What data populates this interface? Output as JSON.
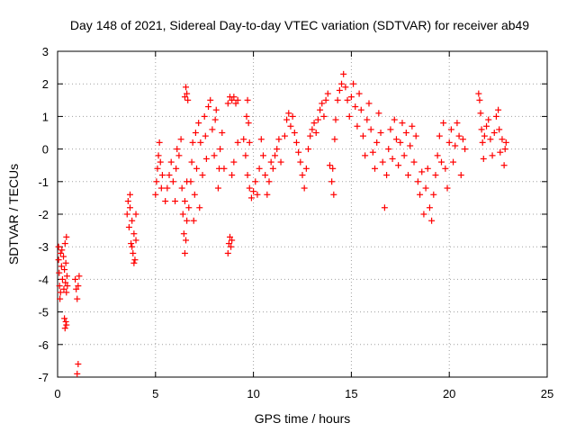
{
  "chart_data": {
    "type": "scatter",
    "title": "Day 148 of 2021, Sidereal Day-to-day VTEC variation (SDTVAR) for receiver ab49",
    "xlabel": "GPS time / hours",
    "ylabel": "SDTVAR / TECUs",
    "xlim": [
      0,
      25
    ],
    "ylim": [
      -7,
      3
    ],
    "xticks": [
      0,
      5,
      10,
      15,
      20,
      25
    ],
    "yticks": [
      -7,
      -6,
      -5,
      -4,
      -3,
      -2,
      -1,
      0,
      1,
      2,
      3
    ],
    "xtick_labels": [
      "0",
      "5",
      "10",
      "15",
      "20",
      "25"
    ],
    "ytick_labels": [
      "-7",
      "-6",
      "-5",
      "-4",
      "-3",
      "-2",
      "-1",
      "0",
      "1",
      "2",
      "3"
    ],
    "grid": true,
    "marker": "+",
    "color": "#ff0000",
    "series": [
      {
        "name": "SDTVAR",
        "points": [
          [
            0.05,
            -3.0
          ],
          [
            0.05,
            -3.4
          ],
          [
            0.08,
            -3.8
          ],
          [
            0.1,
            -4.2
          ],
          [
            0.12,
            -4.6
          ],
          [
            0.15,
            -4.4
          ],
          [
            0.15,
            -3.2
          ],
          [
            0.2,
            -3.6
          ],
          [
            0.22,
            -3.1
          ],
          [
            0.25,
            -4.0
          ],
          [
            0.3,
            -3.3
          ],
          [
            0.32,
            -4.3
          ],
          [
            0.35,
            -3.7
          ],
          [
            0.38,
            -2.9
          ],
          [
            0.4,
            -4.1
          ],
          [
            0.42,
            -3.5
          ],
          [
            0.45,
            -4.4
          ],
          [
            0.45,
            -2.7
          ],
          [
            0.48,
            -3.9
          ],
          [
            0.5,
            -4.2
          ],
          [
            0.35,
            -5.2
          ],
          [
            0.38,
            -5.5
          ],
          [
            0.42,
            -5.3
          ],
          [
            0.45,
            -5.4
          ],
          [
            0.9,
            -4.0
          ],
          [
            0.95,
            -4.3
          ],
          [
            1.0,
            -4.6
          ],
          [
            1.05,
            -4.2
          ],
          [
            1.1,
            -3.9
          ],
          [
            1.05,
            -6.6
          ],
          [
            1.0,
            -6.9
          ],
          [
            3.55,
            -2.0
          ],
          [
            3.6,
            -1.6
          ],
          [
            3.65,
            -2.4
          ],
          [
            3.7,
            -1.8
          ],
          [
            3.75,
            -2.9
          ],
          [
            3.8,
            -2.2
          ],
          [
            3.85,
            -3.2
          ],
          [
            3.9,
            -2.6
          ],
          [
            3.95,
            -3.4
          ],
          [
            4.0,
            -2.0
          ],
          [
            3.7,
            -1.4
          ],
          [
            3.8,
            -3.0
          ],
          [
            3.9,
            -3.5
          ],
          [
            4.0,
            -2.8
          ],
          [
            5.0,
            -1.4
          ],
          [
            5.05,
            -1.0
          ],
          [
            5.1,
            -0.6
          ],
          [
            5.15,
            -0.2
          ],
          [
            5.2,
            0.2
          ],
          [
            5.25,
            -0.4
          ],
          [
            5.3,
            -1.2
          ],
          [
            5.35,
            -0.8
          ],
          [
            5.5,
            -1.6
          ],
          [
            5.6,
            -1.2
          ],
          [
            5.7,
            -0.8
          ],
          [
            5.8,
            -0.4
          ],
          [
            5.9,
            -1.0
          ],
          [
            6.0,
            -1.6
          ],
          [
            6.05,
            -0.6
          ],
          [
            6.1,
            0.0
          ],
          [
            6.2,
            -0.2
          ],
          [
            6.3,
            0.3
          ],
          [
            6.35,
            -1.2
          ],
          [
            6.4,
            -2.0
          ],
          [
            6.45,
            -2.6
          ],
          [
            6.5,
            -3.2
          ],
          [
            6.55,
            -2.8
          ],
          [
            6.6,
            -2.2
          ],
          [
            6.5,
            -1.6
          ],
          [
            6.6,
            -1.0
          ],
          [
            6.5,
            1.6
          ],
          [
            6.55,
            1.9
          ],
          [
            6.6,
            1.7
          ],
          [
            6.65,
            1.5
          ],
          [
            6.7,
            -1.8
          ],
          [
            6.8,
            -1.0
          ],
          [
            6.85,
            -0.4
          ],
          [
            6.9,
            0.2
          ],
          [
            6.95,
            -2.2
          ],
          [
            7.0,
            -1.4
          ],
          [
            7.05,
            0.5
          ],
          [
            7.1,
            -0.6
          ],
          [
            7.2,
            0.8
          ],
          [
            7.25,
            -1.8
          ],
          [
            7.3,
            0.2
          ],
          [
            7.4,
            -0.8
          ],
          [
            7.5,
            1.0
          ],
          [
            7.55,
            0.4
          ],
          [
            7.6,
            -0.3
          ],
          [
            7.7,
            1.3
          ],
          [
            7.8,
            1.5
          ],
          [
            7.9,
            0.6
          ],
          [
            8.0,
            -0.2
          ],
          [
            8.05,
            0.9
          ],
          [
            8.1,
            1.2
          ],
          [
            8.2,
            -1.2
          ],
          [
            8.25,
            -0.6
          ],
          [
            8.3,
            0.0
          ],
          [
            8.4,
            0.5
          ],
          [
            8.5,
            -0.6
          ],
          [
            8.7,
            -3.2
          ],
          [
            8.75,
            -2.9
          ],
          [
            8.8,
            -2.7
          ],
          [
            8.85,
            -3.0
          ],
          [
            8.9,
            -2.8
          ],
          [
            8.7,
            1.4
          ],
          [
            8.8,
            1.6
          ],
          [
            8.9,
            1.5
          ],
          [
            9.0,
            1.6
          ],
          [
            9.1,
            1.4
          ],
          [
            9.2,
            1.5
          ],
          [
            8.9,
            -0.8
          ],
          [
            9.0,
            -0.4
          ],
          [
            9.2,
            0.2
          ],
          [
            9.5,
            0.3
          ],
          [
            9.6,
            -0.2
          ],
          [
            9.7,
            -0.8
          ],
          [
            9.8,
            -1.2
          ],
          [
            9.9,
            -1.5
          ],
          [
            10.0,
            -1.3
          ],
          [
            9.65,
            1.0
          ],
          [
            9.7,
            1.5
          ],
          [
            9.75,
            0.8
          ],
          [
            9.8,
            0.2
          ],
          [
            10.1,
            -1.0
          ],
          [
            10.2,
            -1.4
          ],
          [
            10.3,
            -0.6
          ],
          [
            10.4,
            0.3
          ],
          [
            10.5,
            -0.2
          ],
          [
            10.6,
            -0.8
          ],
          [
            10.7,
            -1.4
          ],
          [
            10.8,
            -1.0
          ],
          [
            10.9,
            -0.4
          ],
          [
            11.0,
            -0.6
          ],
          [
            11.1,
            -0.2
          ],
          [
            11.2,
            0.0
          ],
          [
            11.3,
            0.3
          ],
          [
            11.4,
            -0.4
          ],
          [
            11.6,
            0.4
          ],
          [
            11.7,
            0.9
          ],
          [
            11.8,
            1.1
          ],
          [
            11.9,
            0.7
          ],
          [
            12.0,
            1.0
          ],
          [
            12.1,
            0.5
          ],
          [
            12.2,
            0.2
          ],
          [
            12.3,
            -0.1
          ],
          [
            12.4,
            -0.4
          ],
          [
            12.5,
            -0.8
          ],
          [
            12.6,
            -1.2
          ],
          [
            12.7,
            -0.6
          ],
          [
            12.8,
            0.0
          ],
          [
            12.9,
            0.4
          ],
          [
            13.0,
            0.6
          ],
          [
            13.1,
            0.8
          ],
          [
            13.2,
            0.5
          ],
          [
            13.3,
            0.9
          ],
          [
            13.4,
            1.2
          ],
          [
            13.5,
            1.4
          ],
          [
            13.6,
            1.0
          ],
          [
            13.7,
            1.5
          ],
          [
            13.8,
            1.7
          ],
          [
            13.9,
            -0.5
          ],
          [
            14.0,
            -1.0
          ],
          [
            14.05,
            -0.6
          ],
          [
            14.1,
            -1.4
          ],
          [
            14.15,
            0.3
          ],
          [
            14.2,
            0.9
          ],
          [
            14.3,
            1.5
          ],
          [
            14.4,
            1.8
          ],
          [
            14.5,
            2.0
          ],
          [
            14.6,
            2.3
          ],
          [
            14.7,
            1.9
          ],
          [
            14.8,
            1.5
          ],
          [
            14.9,
            1.0
          ],
          [
            15.0,
            1.6
          ],
          [
            15.1,
            2.0
          ],
          [
            15.2,
            1.3
          ],
          [
            15.3,
            0.7
          ],
          [
            15.4,
            1.7
          ],
          [
            15.5,
            1.2
          ],
          [
            15.6,
            0.4
          ],
          [
            15.7,
            -0.2
          ],
          [
            15.8,
            0.9
          ],
          [
            15.9,
            1.4
          ],
          [
            16.0,
            0.6
          ],
          [
            16.1,
            -0.1
          ],
          [
            16.2,
            -0.6
          ],
          [
            16.3,
            0.2
          ],
          [
            16.4,
            1.1
          ],
          [
            16.5,
            0.5
          ],
          [
            16.6,
            -0.4
          ],
          [
            16.7,
            -1.8
          ],
          [
            16.8,
            -0.8
          ],
          [
            16.9,
            0.0
          ],
          [
            17.0,
            0.6
          ],
          [
            17.1,
            -0.3
          ],
          [
            17.2,
            0.9
          ],
          [
            17.3,
            0.3
          ],
          [
            17.4,
            -0.5
          ],
          [
            17.5,
            0.2
          ],
          [
            17.6,
            0.8
          ],
          [
            17.7,
            -0.2
          ],
          [
            17.8,
            0.5
          ],
          [
            17.9,
            -0.8
          ],
          [
            18.0,
            0.1
          ],
          [
            18.1,
            0.7
          ],
          [
            18.2,
            -0.4
          ],
          [
            18.3,
            0.4
          ],
          [
            18.4,
            -1.0
          ],
          [
            18.5,
            -1.4
          ],
          [
            18.6,
            -0.7
          ],
          [
            18.7,
            -2.0
          ],
          [
            18.8,
            -1.2
          ],
          [
            18.9,
            -0.6
          ],
          [
            19.0,
            -1.8
          ],
          [
            19.1,
            -2.2
          ],
          [
            19.2,
            -1.4
          ],
          [
            19.3,
            -0.8
          ],
          [
            19.4,
            -0.2
          ],
          [
            19.5,
            0.4
          ],
          [
            19.6,
            -0.4
          ],
          [
            19.7,
            0.8
          ],
          [
            19.8,
            -0.6
          ],
          [
            19.9,
            -1.2
          ],
          [
            20.0,
            0.2
          ],
          [
            20.1,
            0.6
          ],
          [
            20.2,
            -0.4
          ],
          [
            20.3,
            0.1
          ],
          [
            20.4,
            0.8
          ],
          [
            20.5,
            0.4
          ],
          [
            20.6,
            -0.8
          ],
          [
            20.7,
            0.3
          ],
          [
            20.8,
            0.0
          ],
          [
            21.5,
            1.7
          ],
          [
            21.55,
            1.5
          ],
          [
            21.6,
            1.1
          ],
          [
            21.65,
            0.6
          ],
          [
            21.7,
            0.2
          ],
          [
            21.75,
            -0.3
          ],
          [
            21.8,
            0.4
          ],
          [
            21.9,
            0.7
          ],
          [
            22.0,
            0.9
          ],
          [
            22.1,
            0.3
          ],
          [
            22.2,
            -0.2
          ],
          [
            22.3,
            0.5
          ],
          [
            22.4,
            1.0
          ],
          [
            22.5,
            1.2
          ],
          [
            22.55,
            0.6
          ],
          [
            22.6,
            -0.1
          ],
          [
            22.7,
            0.3
          ],
          [
            22.8,
            -0.5
          ],
          [
            22.85,
            0.0
          ],
          [
            22.9,
            0.2
          ]
        ]
      }
    ]
  }
}
